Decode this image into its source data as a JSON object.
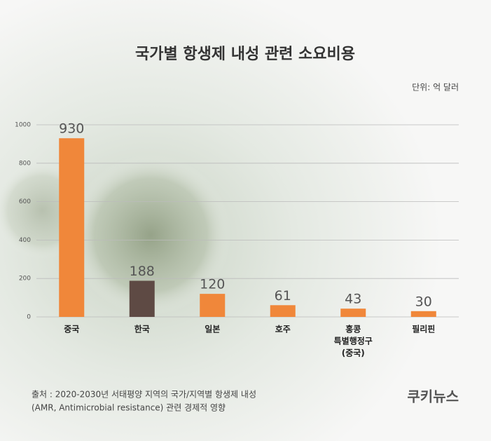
{
  "chart_data": {
    "type": "bar",
    "title": "국가별 항생제 내성 관련 소요비용",
    "unit": "단위: 억 달러",
    "categories": [
      "중국",
      "한국",
      "일본",
      "호주",
      [
        "홍콩",
        "특별행정구",
        "(중국)"
      ],
      "필리핀"
    ],
    "values": [
      930,
      188,
      120,
      61,
      43,
      30
    ],
    "colors": [
      "#f0873a",
      "#5e4a44",
      "#f0873a",
      "#f0873a",
      "#f0873a",
      "#f0873a"
    ],
    "ylim": [
      0,
      1000
    ],
    "yticks": [
      0,
      200,
      400,
      600,
      800,
      1000
    ],
    "grid": true,
    "source": [
      "출처 : 2020-2030년 서태평양 지역의 국가/지역별 항생제 내성",
      "(AMR, Antimicrobial resistance) 관련 경제적 영향"
    ],
    "logo": "쿠키뉴스"
  }
}
